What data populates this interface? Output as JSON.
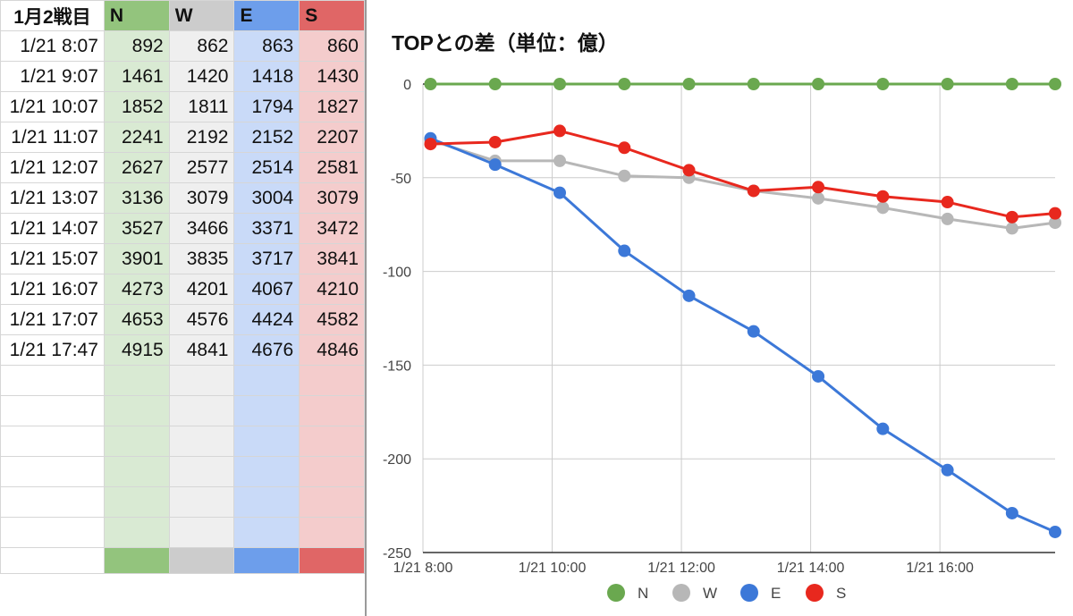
{
  "sheet": {
    "header": [
      "1月2戦目",
      "N",
      "W",
      "E",
      "S"
    ],
    "rows": [
      [
        "1/21 8:07",
        "892",
        "862",
        "863",
        "860"
      ],
      [
        "1/21 9:07",
        "1461",
        "1420",
        "1418",
        "1430"
      ],
      [
        "1/21 10:07",
        "1852",
        "1811",
        "1794",
        "1827"
      ],
      [
        "1/21 11:07",
        "2241",
        "2192",
        "2152",
        "2207"
      ],
      [
        "1/21 12:07",
        "2627",
        "2577",
        "2514",
        "2581"
      ],
      [
        "1/21 13:07",
        "3136",
        "3079",
        "3004",
        "3079"
      ],
      [
        "1/21 14:07",
        "3527",
        "3466",
        "3371",
        "3472"
      ],
      [
        "1/21 15:07",
        "3901",
        "3835",
        "3717",
        "3841"
      ],
      [
        "1/21 16:07",
        "4273",
        "4201",
        "4067",
        "4210"
      ],
      [
        "1/21 17:07",
        "4653",
        "4576",
        "4424",
        "4582"
      ],
      [
        "1/21 17:47",
        "4915",
        "4841",
        "4676",
        "4846"
      ]
    ],
    "empty_rows": 6,
    "column_colors": {
      "N": {
        "header": "#93c47d",
        "cell": "#d9ead3"
      },
      "W": {
        "header": "#cccccc",
        "cell": "#efefef"
      },
      "E": {
        "header": "#6d9eeb",
        "cell": "#c9daf8"
      },
      "S": {
        "header": "#e06666",
        "cell": "#f4cccc"
      }
    }
  },
  "chart_data": {
    "type": "line",
    "title": "TOPとの差（単位：億）",
    "x": [
      "1/21 8:07",
      "1/21 9:07",
      "1/21 10:07",
      "1/21 11:07",
      "1/21 12:07",
      "1/21 13:07",
      "1/21 14:07",
      "1/21 15:07",
      "1/21 16:07",
      "1/21 17:07",
      "1/21 17:47"
    ],
    "x_hours": [
      8.117,
      9.117,
      10.117,
      11.117,
      12.117,
      13.117,
      14.117,
      15.117,
      16.117,
      17.117,
      17.783
    ],
    "xticks": [
      8,
      10,
      12,
      14,
      16
    ],
    "xtick_labels": [
      "1/21 8:00",
      "1/21 10:00",
      "1/21 12:00",
      "1/21 14:00",
      "1/21 16:00"
    ],
    "xlim": [
      8,
      17.783
    ],
    "yticks": [
      0,
      -50,
      -100,
      -150,
      -200,
      -250
    ],
    "ylim": [
      -250,
      0
    ],
    "grid": true,
    "legend_position": "bottom",
    "series": [
      {
        "name": "N",
        "color": "#6aa84f",
        "values": [
          0,
          0,
          0,
          0,
          0,
          0,
          0,
          0,
          0,
          0,
          0
        ]
      },
      {
        "name": "W",
        "color": "#b7b7b7",
        "values": [
          -30,
          -41,
          -41,
          -49,
          -50,
          -57,
          -61,
          -66,
          -72,
          -77,
          -74
        ]
      },
      {
        "name": "E",
        "color": "#3c78d8",
        "values": [
          -29,
          -43,
          -58,
          -89,
          -113,
          -132,
          -156,
          -184,
          -206,
          -229,
          -239
        ]
      },
      {
        "name": "S",
        "color": "#e8281e",
        "values": [
          -32,
          -31,
          -25,
          -34,
          -46,
          -57,
          -55,
          -60,
          -63,
          -71,
          -69
        ]
      }
    ]
  }
}
